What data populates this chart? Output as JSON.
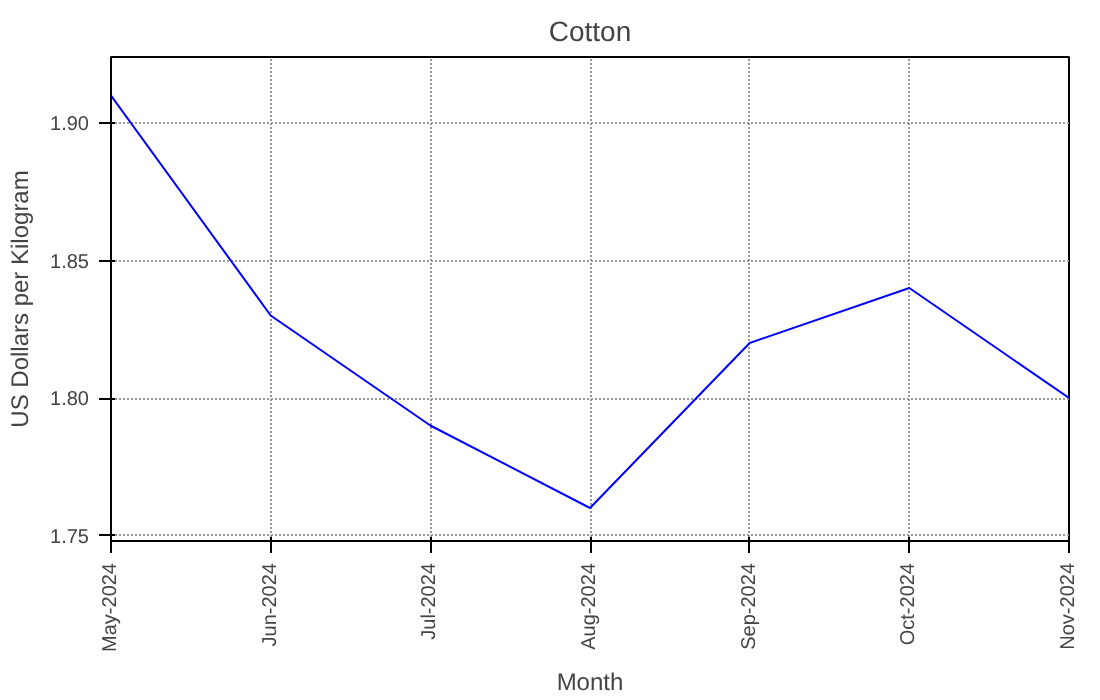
{
  "chart_data": {
    "type": "line",
    "title": "Cotton",
    "xlabel": "Month",
    "ylabel": "US Dollars per Kilogram",
    "categories": [
      "May-2024",
      "Jun-2024",
      "Jul-2024",
      "Aug-2024",
      "Sep-2024",
      "Oct-2024",
      "Nov-2024"
    ],
    "series": [
      {
        "color": "#0000ff",
        "values": [
          1.91,
          1.83,
          1.79,
          1.76,
          1.82,
          1.84,
          1.8
        ]
      }
    ],
    "ylim": [
      1.748,
      1.924
    ],
    "yticks": [
      {
        "value": 1.75,
        "label": "1.75"
      },
      {
        "value": 1.8,
        "label": "1.80"
      },
      {
        "value": 1.85,
        "label": "1.85"
      },
      {
        "value": 1.9,
        "label": "1.90"
      }
    ],
    "grid": true,
    "marker": "none",
    "line_style": "solid"
  }
}
